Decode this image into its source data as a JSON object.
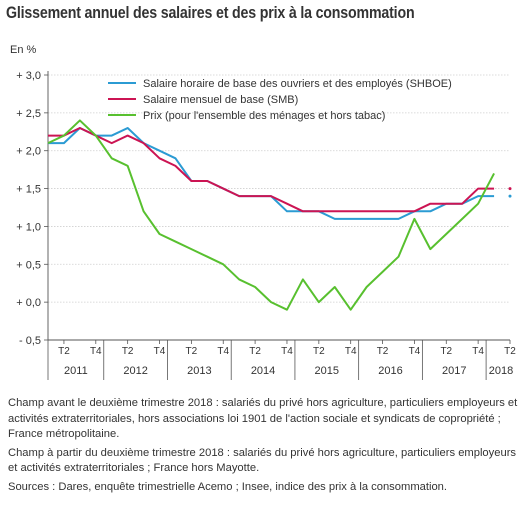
{
  "title": "Glissement annuel des salaires et des prix à la consommation",
  "chart_data": {
    "type": "line",
    "unit_label": "En %",
    "ylim": [
      -0.5,
      3.0
    ],
    "yticks": [
      -0.5,
      0.0,
      0.5,
      1.0,
      1.5,
      2.0,
      2.5,
      3.0
    ],
    "ytick_labels": [
      "- 0,5",
      "+ 0,0",
      "+ 0,5",
      "+ 1,0",
      "+ 1,5",
      "+ 2,0",
      "+ 2,5",
      "+ 3,0"
    ],
    "grid": true,
    "legend_position": "top-right",
    "quarter_labels": [
      "T2",
      "T4",
      "T2",
      "T4",
      "T2",
      "T4",
      "T2",
      "T4",
      "T2",
      "T4",
      "T2",
      "T4",
      "T2",
      "T4",
      "T2"
    ],
    "years": [
      "2011",
      "2012",
      "2013",
      "2014",
      "2015",
      "2016",
      "2017",
      "2018"
    ],
    "x": [
      "2011-T1",
      "2011-T2",
      "2011-T3",
      "2011-T4",
      "2012-T1",
      "2012-T2",
      "2012-T3",
      "2012-T4",
      "2013-T1",
      "2013-T2",
      "2013-T3",
      "2013-T4",
      "2014-T1",
      "2014-T2",
      "2014-T3",
      "2014-T4",
      "2015-T1",
      "2015-T2",
      "2015-T3",
      "2015-T4",
      "2016-T1",
      "2016-T2",
      "2016-T3",
      "2016-T4",
      "2017-T1",
      "2017-T2",
      "2017-T3",
      "2017-T4",
      "2018-T1",
      "2018-T2"
    ],
    "series": [
      {
        "name": "Salaire horaire de base des ouvriers et des employés (SHBOE)",
        "color": "#2b9bd3",
        "values": [
          2.1,
          2.1,
          2.3,
          2.2,
          2.2,
          2.3,
          2.1,
          2.0,
          1.9,
          1.6,
          1.6,
          1.5,
          1.4,
          1.4,
          1.4,
          1.2,
          1.2,
          1.2,
          1.1,
          1.1,
          1.1,
          1.1,
          1.1,
          1.2,
          1.2,
          1.3,
          1.3,
          1.4,
          1.4,
          null
        ],
        "projected_value": 1.4
      },
      {
        "name": "Salaire mensuel de base (SMB)",
        "color": "#cc1453",
        "values": [
          2.2,
          2.2,
          2.3,
          2.2,
          2.1,
          2.2,
          2.1,
          1.9,
          1.8,
          1.6,
          1.6,
          1.5,
          1.4,
          1.4,
          1.4,
          1.3,
          1.2,
          1.2,
          1.2,
          1.2,
          1.2,
          1.2,
          1.2,
          1.2,
          1.3,
          1.3,
          1.3,
          1.5,
          1.5,
          null
        ],
        "projected_value": 1.5
      },
      {
        "name": "Prix (pour l'ensemble des ménages et hors tabac)",
        "color": "#58c02f",
        "values": [
          2.1,
          2.2,
          2.4,
          2.2,
          1.9,
          1.8,
          1.2,
          0.9,
          0.8,
          0.7,
          0.6,
          0.5,
          0.3,
          0.2,
          0.0,
          -0.1,
          0.3,
          0.0,
          0.2,
          -0.1,
          0.2,
          0.4,
          0.6,
          1.1,
          0.7,
          0.9,
          1.1,
          1.3,
          1.7,
          null
        ]
      }
    ]
  },
  "notes": [
    "Champ avant le deuxième trimestre 2018 : salariés du privé hors agriculture, particuliers employeurs et activités extraterritoriales, hors associations loi 1901 de l'action sociale et syndicats de copropriété ; France métropolitaine.",
    "Champ à partir du deuxième trimestre 2018 : salariés du privé hors agriculture, particuliers employeurs et activités extraterritoriales ; France hors Mayotte.",
    "Sources : Dares, enquête trimestrielle Acemo ; Insee, indice des prix à la consommation."
  ]
}
